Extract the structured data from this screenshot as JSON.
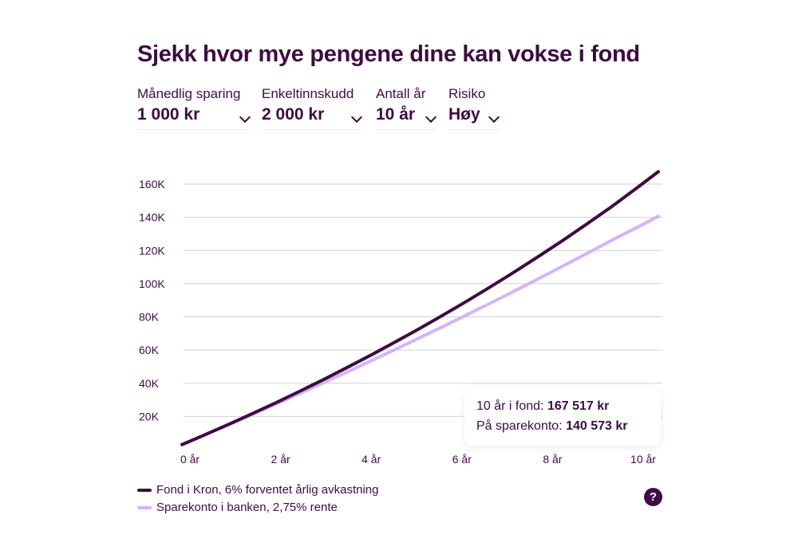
{
  "title": "Sjekk hvor mye pengene dine kan vokse i fond",
  "controls": [
    {
      "label": "Månedlig sparing",
      "value": "1 000 kr"
    },
    {
      "label": "Enkeltinnskudd",
      "value": "2 000 kr"
    },
    {
      "label": "Antall år",
      "value": "10 år"
    },
    {
      "label": "Risiko",
      "value": "Høy"
    }
  ],
  "tooltip": {
    "fond_label": "10 år i fond:",
    "fond_value": "167 517 kr",
    "spare_label": "På sparekonto:",
    "spare_value": "140 573 kr"
  },
  "help_label": "?",
  "colors": {
    "fond": "#3d0c42",
    "sparekonto": "#d5b4f7",
    "grid": "#d0d0d0"
  },
  "chart_data": {
    "type": "line",
    "x": [
      0,
      1,
      2,
      3,
      4,
      5,
      6,
      7,
      8,
      9,
      10
    ],
    "xticks": [
      0,
      2,
      4,
      6,
      8,
      10
    ],
    "xtick_labels": [
      "0 år",
      "2 år",
      "4 år",
      "6 år",
      "8 år",
      "10 år"
    ],
    "yticks": [
      20000,
      40000,
      60000,
      80000,
      100000,
      120000,
      140000,
      160000
    ],
    "ytick_labels": [
      "20K",
      "40K",
      "60K",
      "80K",
      "100K",
      "120K",
      "140K",
      "160K"
    ],
    "ylim": [
      0,
      160000
    ],
    "xlim": [
      0,
      10
    ],
    "grid": true,
    "legend_position": "bottom-left",
    "series": [
      {
        "name": "Fond i Kron, 6% forventet årlig avkastning",
        "values": [
          3000,
          15445,
          28637,
          42622,
          57450,
          73150,
          89807,
          107457,
          126168,
          146019,
          167517
        ]
      },
      {
        "name": "Sparekonto i banken, 2,75% rente",
        "values": [
          3000,
          15218,
          27792,
          40676,
          53915,
          67555,
          81550,
          95901,
          110695,
          125843,
          140573
        ]
      }
    ]
  }
}
